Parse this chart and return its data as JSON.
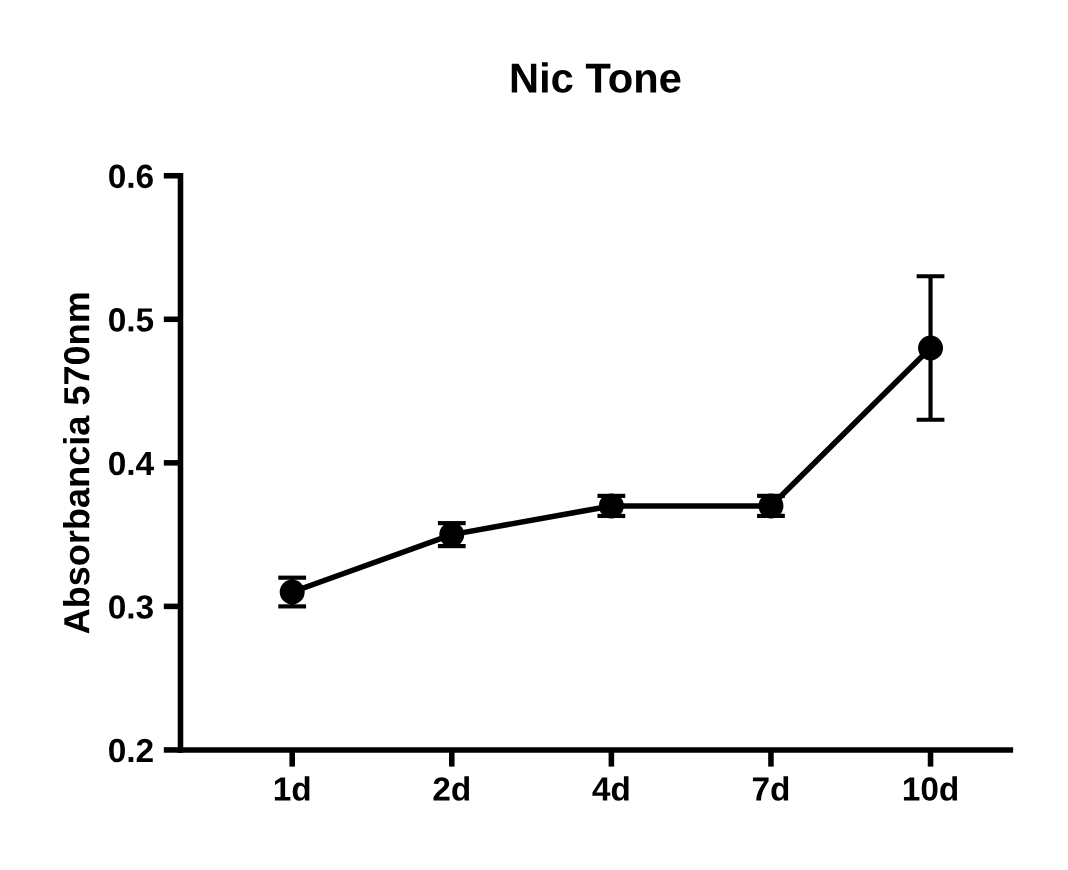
{
  "chart_data": {
    "type": "line",
    "title": "Nic Tone",
    "ylabel": "Absorbancia 570nm",
    "categories": [
      "1d",
      "2d",
      "4d",
      "7d",
      "10d"
    ],
    "values": [
      0.31,
      0.35,
      0.37,
      0.37,
      0.48
    ],
    "errors": [
      0.01,
      0.008,
      0.007,
      0.007,
      0.05
    ],
    "color": "#000000",
    "marker": "circle",
    "line_style": "solid",
    "ylim": [
      0.2,
      0.6
    ],
    "yticks": [
      0.2,
      0.3,
      0.4,
      0.5,
      0.6
    ],
    "grid": false,
    "legend": false
  }
}
